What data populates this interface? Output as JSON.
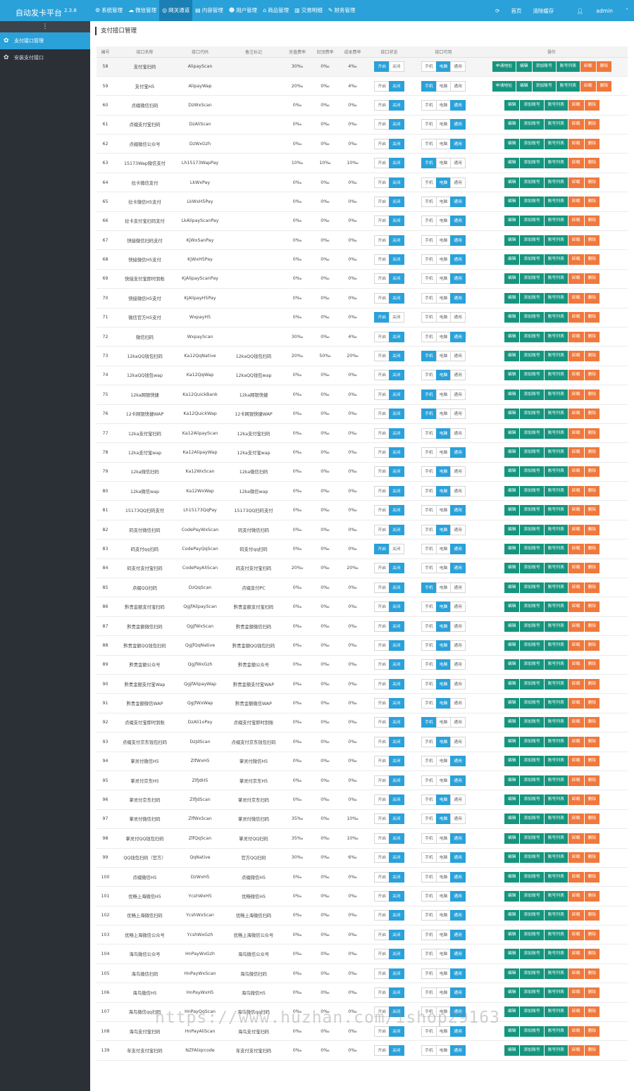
{
  "app": {
    "title": "自动发卡平台",
    "version": "2.3.8"
  },
  "topnav": [
    {
      "icon": "⚙",
      "label": "系统管理"
    },
    {
      "icon": "☁",
      "label": "微信管理"
    },
    {
      "icon": "◎",
      "label": "网关通道"
    },
    {
      "icon": "▤",
      "label": "内容管理"
    },
    {
      "icon": "☻",
      "label": "用户管理"
    },
    {
      "icon": "⌂",
      "label": "商品管理"
    },
    {
      "icon": "▥",
      "label": "交易明细"
    },
    {
      "icon": "✎",
      "label": "财务管理"
    }
  ],
  "topright": {
    "refresh_icon": "⟳",
    "home": "首页",
    "clear_cache": "清除缓存",
    "user": "admin"
  },
  "sidebar": {
    "toggle_icon": "⋮",
    "items": [
      {
        "icon": "✿",
        "label": "支付接口管理"
      },
      {
        "icon": "✿",
        "label": "安装支付接口"
      }
    ]
  },
  "page": {
    "title": "支付接口管理"
  },
  "columns": [
    "编号",
    "接口名称",
    "接口代码",
    "备注标记",
    "充值费率",
    "封顶费率",
    "成本费率",
    "接口状态",
    "接口可用",
    "操作"
  ],
  "labels": {
    "open": "开启",
    "close": "关闭",
    "mobile": "手机",
    "pc": "电脑",
    "general": "通用",
    "apply": "申请地址",
    "edit": "编辑",
    "add_account": "添加账号",
    "account_list": "账号列表",
    "uninstall": "卸载",
    "delete": "删除"
  },
  "colors": {
    "accent": "#2aa1d9",
    "green": "#16957e",
    "orange": "#f0783c",
    "sidebar": "#2b3037"
  },
  "rows": [
    {
      "id": "58",
      "name": "支付宝扫码",
      "code": "AlipayScan",
      "note": "",
      "rate": "30‰",
      "cap": "0‰",
      "cost": "4‰",
      "status": "open",
      "device": "pc",
      "apply": true
    },
    {
      "id": "59",
      "name": "支付宝H5",
      "code": "AlipayWap",
      "note": "",
      "rate": "20‰",
      "cap": "0‰",
      "cost": "4‰",
      "status": "close",
      "device": "mobile",
      "apply": true
    },
    {
      "id": "60",
      "name": "点缀微信扫码",
      "code": "DzWxScan",
      "note": "",
      "rate": "0‰",
      "cap": "0‰",
      "cost": "0‰",
      "status": "close",
      "device": "general",
      "apply": false
    },
    {
      "id": "61",
      "name": "点缀支付宝扫码",
      "code": "DzAliScan",
      "note": "",
      "rate": "0‰",
      "cap": "0‰",
      "cost": "0‰",
      "status": "close",
      "device": "general",
      "apply": false
    },
    {
      "id": "62",
      "name": "点缀微信公众号",
      "code": "DzWxGzh",
      "note": "",
      "rate": "0‰",
      "cap": "0‰",
      "cost": "0‰",
      "status": "close",
      "device": "general",
      "apply": false
    },
    {
      "id": "63",
      "name": "15173Wap微信支付",
      "code": "Lh15173WapPay",
      "note": "",
      "rate": "10‰",
      "cap": "10‰",
      "cost": "10‰",
      "status": "close",
      "device": "mobile",
      "apply": false
    },
    {
      "id": "64",
      "name": "拉卡微信支付",
      "code": "LkWxPay",
      "note": "",
      "rate": "0‰",
      "cap": "0‰",
      "cost": "0‰",
      "status": "close",
      "device": "pc",
      "apply": false
    },
    {
      "id": "65",
      "name": "拉卡微信H5支付",
      "code": "LkWxH5Pay",
      "note": "",
      "rate": "0‰",
      "cap": "0‰",
      "cost": "0‰",
      "status": "close",
      "device": "general",
      "apply": false
    },
    {
      "id": "66",
      "name": "拉卡支付宝扫码支付",
      "code": "LkAlipayScanPay",
      "note": "",
      "rate": "0‰",
      "cap": "0‰",
      "cost": "0‰",
      "status": "close",
      "device": "general",
      "apply": false
    },
    {
      "id": "67",
      "name": "快接微信扫码支付",
      "code": "KjWxSanPay",
      "note": "",
      "rate": "0‰",
      "cap": "0‰",
      "cost": "0‰",
      "status": "close",
      "device": "general",
      "apply": false
    },
    {
      "id": "68",
      "name": "快接微信H5支付",
      "code": "KjWxH5Pay",
      "note": "",
      "rate": "0‰",
      "cap": "0‰",
      "cost": "0‰",
      "status": "close",
      "device": "general",
      "apply": false
    },
    {
      "id": "69",
      "name": "快接支付宝即时到账",
      "code": "KjAlipayScanPay",
      "note": "",
      "rate": "0‰",
      "cap": "0‰",
      "cost": "0‰",
      "status": "close",
      "device": "general",
      "apply": false
    },
    {
      "id": "70",
      "name": "快接微信H5支付",
      "code": "KjAlipayH5Pay",
      "note": "",
      "rate": "0‰",
      "cap": "0‰",
      "cost": "0‰",
      "status": "close",
      "device": "general",
      "apply": false
    },
    {
      "id": "71",
      "name": "微信官方H5支付",
      "code": "WxpayH5",
      "note": "",
      "rate": "0‰",
      "cap": "0‰",
      "cost": "0‰",
      "status": "open",
      "device": "none",
      "apply": false
    },
    {
      "id": "72",
      "name": "微信扫码",
      "code": "WxpayScan",
      "note": "",
      "rate": "30‰",
      "cap": "0‰",
      "cost": "4‰",
      "status": "close",
      "device": "general",
      "apply": false
    },
    {
      "id": "73",
      "name": "12kaQQ钱包扫码",
      "code": "Ka12QqNative",
      "note": "12kaQQ钱包扫码",
      "rate": "20‰",
      "cap": "50‰",
      "cost": "20‰",
      "status": "close",
      "device": "mobile",
      "apply": false
    },
    {
      "id": "74",
      "name": "12kaQQ钱包wap",
      "code": "Ka12QqWap",
      "note": "12kaQQ钱包wap",
      "rate": "0‰",
      "cap": "0‰",
      "cost": "0‰",
      "status": "close",
      "device": "pc",
      "apply": false
    },
    {
      "id": "75",
      "name": "12ka网银快捷",
      "code": "Ka12QuickBank",
      "note": "12ka网银快捷",
      "rate": "0‰",
      "cap": "0‰",
      "cost": "0‰",
      "status": "close",
      "device": "mobile",
      "apply": false
    },
    {
      "id": "76",
      "name": "12卡网银快捷WAP",
      "code": "Ka12QuickWap",
      "note": "12卡网银快捷WAP",
      "rate": "0‰",
      "cap": "0‰",
      "cost": "0‰",
      "status": "close",
      "device": "mobile",
      "apply": false
    },
    {
      "id": "77",
      "name": "12ka支付宝扫码",
      "code": "Ka12AlipayScan",
      "note": "12ka支付宝扫码",
      "rate": "0‰",
      "cap": "0‰",
      "cost": "0‰",
      "status": "close",
      "device": "pc",
      "apply": false
    },
    {
      "id": "78",
      "name": "12ka支付宝wap",
      "code": "Ka12AlipayWap",
      "note": "12ka支付宝wap",
      "rate": "0‰",
      "cap": "0‰",
      "cost": "0‰",
      "status": "close",
      "device": "general",
      "apply": false
    },
    {
      "id": "79",
      "name": "12ka微信扫码",
      "code": "Ka12WxScan",
      "note": "12ka微信扫码",
      "rate": "0‰",
      "cap": "0‰",
      "cost": "0‰",
      "status": "close",
      "device": "pc",
      "apply": false
    },
    {
      "id": "80",
      "name": "12ka微信wap",
      "code": "Ka12WxWap",
      "note": "12ka微信wap",
      "rate": "0‰",
      "cap": "0‰",
      "cost": "0‰",
      "status": "close",
      "device": "pc",
      "apply": false
    },
    {
      "id": "81",
      "name": "15173QQ扫码支付",
      "code": "Lh15173QqPay",
      "note": "15173QQ扫码支付",
      "rate": "0‰",
      "cap": "0‰",
      "cost": "0‰",
      "status": "close",
      "device": "general",
      "apply": false
    },
    {
      "id": "82",
      "name": "码支付微信扫码",
      "code": "CodePayWxScan",
      "note": "码支付微信扫码",
      "rate": "0‰",
      "cap": "0‰",
      "cost": "0‰",
      "status": "close",
      "device": "pc",
      "apply": false
    },
    {
      "id": "83",
      "name": "码支付qq扫码",
      "code": "CodePayQqScan",
      "note": "码支付qq扫码",
      "rate": "0‰",
      "cap": "0‰",
      "cost": "0‰",
      "status": "open",
      "device": "general",
      "apply": false
    },
    {
      "id": "84",
      "name": "码支付支付宝扫码",
      "code": "CodePayAliScan",
      "note": "码支付支付宝扫码",
      "rate": "20‰",
      "cap": "0‰",
      "cost": "20‰",
      "status": "close",
      "device": "general",
      "apply": false
    },
    {
      "id": "85",
      "name": "点缀QQ扫码",
      "code": "DzQqScan",
      "note": "点缀支付PC",
      "rate": "0‰",
      "cap": "0‰",
      "cost": "0‰",
      "status": "close",
      "device": "mobile",
      "apply": false
    },
    {
      "id": "86",
      "name": "黔贵金额支付宝扫码",
      "code": "QgjfAlipayScan",
      "note": "黔贵金额支付宝扫码",
      "rate": "0‰",
      "cap": "0‰",
      "cost": "0‰",
      "status": "close",
      "device": "pc",
      "apply": false
    },
    {
      "id": "87",
      "name": "黔贵金额微信扫码",
      "code": "QgjfWxScan",
      "note": "黔贵金额微信扫码",
      "rate": "0‰",
      "cap": "0‰",
      "cost": "0‰",
      "status": "close",
      "device": "pc",
      "apply": false
    },
    {
      "id": "88",
      "name": "黔贵金额QQ钱包扫码",
      "code": "QgjfQqNative",
      "note": "黔贵金额QQ钱包扫码",
      "rate": "0‰",
      "cap": "0‰",
      "cost": "0‰",
      "status": "close",
      "device": "pc",
      "apply": false
    },
    {
      "id": "89",
      "name": "黔贵金额公众号",
      "code": "QgjfWxGzh",
      "note": "黔贵金额公众号",
      "rate": "0‰",
      "cap": "0‰",
      "cost": "0‰",
      "status": "close",
      "device": "pc",
      "apply": false
    },
    {
      "id": "90",
      "name": "黔贵金额支付宝Wap",
      "code": "QgjfAlipayWap",
      "note": "黔贵金额支付宝WAP",
      "rate": "0‰",
      "cap": "0‰",
      "cost": "0‰",
      "status": "close",
      "device": "pc",
      "apply": false
    },
    {
      "id": "91",
      "name": "黔贵金额微信WAP",
      "code": "QgjfWxWap",
      "note": "黔贵金额微信WAP",
      "rate": "0‰",
      "cap": "0‰",
      "cost": "0‰",
      "status": "close",
      "device": "pc",
      "apply": false
    },
    {
      "id": "92",
      "name": "点缀支付宝即时到账",
      "code": "DzAli1oPay",
      "note": "点缀支付宝即时到账",
      "rate": "0‰",
      "cap": "0‰",
      "cost": "0‰",
      "status": "close",
      "device": "mobile",
      "apply": false
    },
    {
      "id": "93",
      "name": "点缀支付京东钱包扫码",
      "code": "DzJdScan",
      "note": "点缀支付京东钱包扫码",
      "rate": "0‰",
      "cap": "0‰",
      "cost": "0‰",
      "status": "close",
      "device": "pc",
      "apply": false
    },
    {
      "id": "94",
      "name": "掌灵付微信H5",
      "code": "ZlfWxH5",
      "note": "掌灵付微信H5",
      "rate": "0‰",
      "cap": "0‰",
      "cost": "0‰",
      "status": "close",
      "device": "general",
      "apply": false
    },
    {
      "id": "95",
      "name": "掌灵付京东H5",
      "code": "ZlfJdH5",
      "note": "掌灵付京东H5",
      "rate": "0‰",
      "cap": "0‰",
      "cost": "0‰",
      "status": "close",
      "device": "general",
      "apply": false
    },
    {
      "id": "96",
      "name": "掌灵付京东扫码",
      "code": "ZlfJdScan",
      "note": "掌灵付京东扫码",
      "rate": "0‰",
      "cap": "0‰",
      "cost": "0‰",
      "status": "close",
      "device": "pc",
      "apply": false
    },
    {
      "id": "97",
      "name": "掌灵付微信扫码",
      "code": "ZlfWxScan",
      "note": "掌灵付微信扫码",
      "rate": "35‰",
      "cap": "0‰",
      "cost": "10‰",
      "status": "close",
      "device": "pc",
      "apply": false
    },
    {
      "id": "98",
      "name": "掌灵付QQ钱包扫码",
      "code": "ZlfQqScan",
      "note": "掌灵付QQ扫码",
      "rate": "35‰",
      "cap": "0‰",
      "cost": "10‰",
      "status": "close",
      "device": "general",
      "apply": false
    },
    {
      "id": "99",
      "name": "QQ钱包扫码（官方）",
      "code": "QqNative",
      "note": "官方QQ扫码",
      "rate": "30‰",
      "cap": "0‰",
      "cost": "6‰",
      "status": "close",
      "device": "general",
      "apply": false
    },
    {
      "id": "100",
      "name": "点缀微信H5",
      "code": "DzWxH5",
      "note": "点缀微信H5",
      "rate": "0‰",
      "cap": "0‰",
      "cost": "0‰",
      "status": "close",
      "device": "general",
      "apply": false
    },
    {
      "id": "101",
      "name": "优畅上海微信H5",
      "code": "YcshWxH5",
      "note": "优畅微信H5",
      "rate": "0‰",
      "cap": "0‰",
      "cost": "0‰",
      "status": "close",
      "device": "general",
      "apply": false
    },
    {
      "id": "102",
      "name": "优畅上海微信扫码",
      "code": "YcshWxScan",
      "note": "优畅上海微信扫码",
      "rate": "0‰",
      "cap": "0‰",
      "cost": "0‰",
      "status": "close",
      "device": "general",
      "apply": false
    },
    {
      "id": "103",
      "name": "优畅上海微信公众号",
      "code": "YcshWxGzh",
      "note": "优畅上海微信公众号",
      "rate": "0‰",
      "cap": "0‰",
      "cost": "0‰",
      "status": "close",
      "device": "general",
      "apply": false
    },
    {
      "id": "104",
      "name": "海鸟微信公众号",
      "code": "HnPayWxGzh",
      "note": "海鸟微信公众号",
      "rate": "0‰",
      "cap": "0‰",
      "cost": "0‰",
      "status": "close",
      "device": "general",
      "apply": false
    },
    {
      "id": "105",
      "name": "海鸟微信扫码",
      "code": "HnPayWxScan",
      "note": "海鸟微信扫码",
      "rate": "0‰",
      "cap": "0‰",
      "cost": "0‰",
      "status": "close",
      "device": "general",
      "apply": false
    },
    {
      "id": "106",
      "name": "海鸟微信H5",
      "code": "HnPayWxH5",
      "note": "海鸟微信H5",
      "rate": "0‰",
      "cap": "0‰",
      "cost": "0‰",
      "status": "close",
      "device": "general",
      "apply": false
    },
    {
      "id": "107",
      "name": "海鸟微信qq扫码",
      "code": "HnPayQqScan",
      "note": "海鸟微信qq扫码",
      "rate": "0‰",
      "cap": "0‰",
      "cost": "0‰",
      "status": "close",
      "device": "general",
      "apply": false
    },
    {
      "id": "108",
      "name": "海鸟支付宝扫码",
      "code": "HnPayAliScan",
      "note": "海鸟支付宝扫码",
      "rate": "0‰",
      "cap": "0‰",
      "cost": "0‰",
      "status": "close",
      "device": "general",
      "apply": false
    },
    {
      "id": "139",
      "name": "年支付支付宝扫码",
      "code": "NZFAliqrcode",
      "note": "年支付支付宝扫码",
      "rate": "0‰",
      "cap": "0‰",
      "cost": "0‰",
      "status": "close",
      "device": "general",
      "apply": false
    }
  ],
  "watermark": "https://www.huzhan.com/ishop29163"
}
